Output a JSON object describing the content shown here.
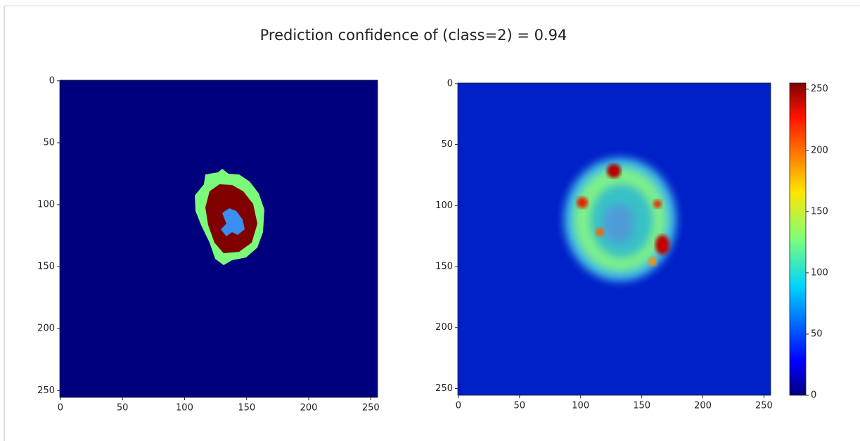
{
  "title": "Prediction confidence of (class=2) =  0.94",
  "chart_data": [
    {
      "type": "image",
      "xlim": [
        -0.5,
        255.5
      ],
      "ylim": [
        255.5,
        -0.5
      ],
      "xticks": [
        0,
        50,
        100,
        150,
        200,
        250
      ],
      "yticks": [
        0,
        50,
        100,
        150,
        200,
        250
      ]
    },
    {
      "type": "image",
      "xlim": [
        -0.5,
        255.5
      ],
      "ylim": [
        255.5,
        -0.5
      ],
      "xticks": [
        0,
        50,
        100,
        150,
        200,
        250
      ],
      "yticks": [
        0,
        50,
        100,
        150,
        200,
        250
      ],
      "colorbar": {
        "lim": [
          0,
          255
        ],
        "ticks": [
          0,
          50,
          100,
          150,
          200,
          250
        ]
      }
    }
  ]
}
